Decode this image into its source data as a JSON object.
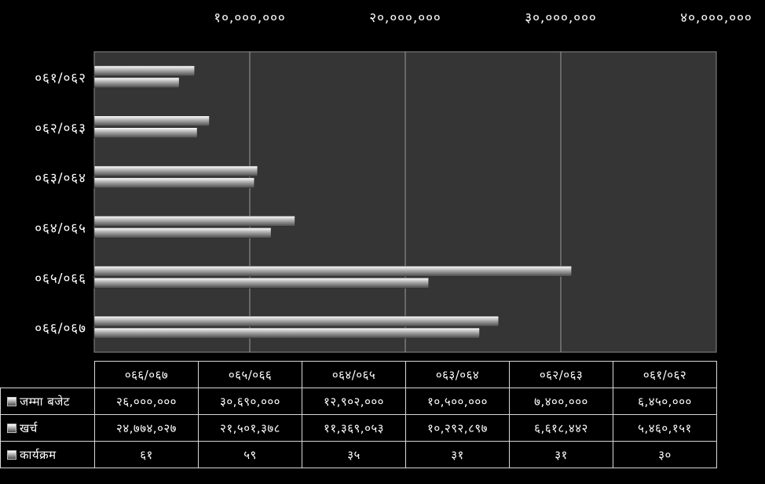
{
  "chart_data": {
    "type": "bar",
    "orientation": "horizontal",
    "categories": [
      "०६६/०६७",
      "०६५/०६६",
      "०६४/०६५",
      "०६३/०६४",
      "०६२/०६३",
      "०६१/०६२"
    ],
    "series": [
      {
        "name": "जम्मा बजेट",
        "values": [
          26000000,
          30690000,
          12902000,
          10500000,
          7400000,
          6450000
        ]
      },
      {
        "name": "खर्च",
        "values": [
          24774027,
          21501378,
          11369053,
          10292897,
          6618442,
          5460151
        ]
      },
      {
        "name": "कार्यक्रम",
        "values": [
          61,
          59,
          35,
          31,
          31,
          30
        ]
      }
    ],
    "xlim": [
      0,
      40000000
    ],
    "x_ticks": [
      "१०,०००,०००",
      "२०,०००,०००",
      "३०,०००,०००",
      "४०,०००,०००"
    ],
    "x_tick_values": [
      10000000,
      20000000,
      30000000,
      40000000
    ],
    "grid": true,
    "colors": {
      "background": "#000000",
      "plot_area": "#353535",
      "gridline": "#9a9a9a",
      "bar_top": "#ffffff",
      "bar_bottom": "#4a4a4a"
    },
    "table": {
      "headers": [
        "०६६/०६७",
        "०६५/०६६",
        "०६४/०६५",
        "०६३/०६४",
        "०६२/०६३",
        "०६१/०६२"
      ],
      "rows": [
        {
          "label": "जम्मा बजेट",
          "cells": [
            "२६,०००,०००",
            "३०,६९०,०००",
            "१२,९०२,०००",
            "१०,५००,०००",
            "७,४००,०००",
            "६,४५०,०००"
          ]
        },
        {
          "label": "खर्च",
          "cells": [
            "२४,७७४,०२७",
            "२१,५०१,३७८",
            "११,३६९,०५३",
            "१०,२९२,८९७",
            "६,६१८,४४२",
            "५,४६०,१५१"
          ]
        },
        {
          "label": "कार्यक्रम",
          "cells": [
            "६१",
            "५९",
            "३५",
            "३१",
            "३१",
            "३०"
          ]
        }
      ]
    }
  }
}
